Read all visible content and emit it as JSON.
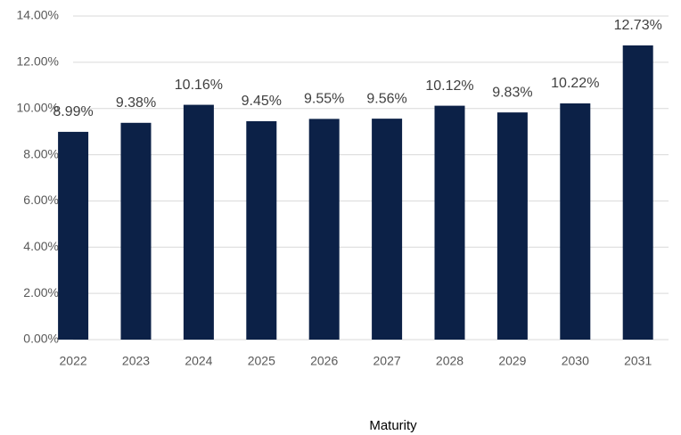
{
  "chart_data": {
    "type": "bar",
    "x_label": "Maturity",
    "categories": [
      "2022",
      "2023",
      "2024",
      "2025",
      "2026",
      "2027",
      "2028",
      "2029",
      "2030",
      "2031"
    ],
    "values": [
      8.99,
      9.38,
      10.16,
      9.45,
      9.55,
      9.56,
      10.12,
      9.83,
      10.22,
      12.73
    ],
    "value_labels": [
      "8.99%",
      "9.38%",
      "10.16%",
      "9.45%",
      "9.55%",
      "9.56%",
      "10.12%",
      "9.83%",
      "10.22%",
      "12.73%"
    ],
    "color": "#0c2147",
    "ylim": [
      0,
      14
    ],
    "yticks": [
      {
        "value": 0,
        "label": "0.00%"
      },
      {
        "value": 2,
        "label": "2.00%"
      },
      {
        "value": 4,
        "label": "4.00%"
      },
      {
        "value": 6,
        "label": "6.00%"
      },
      {
        "value": 8,
        "label": "8.00%"
      },
      {
        "value": 10,
        "label": "10.00%"
      },
      {
        "value": 12,
        "label": "12.00%"
      },
      {
        "value": 14,
        "label": "14.00%"
      }
    ],
    "grid": true
  }
}
